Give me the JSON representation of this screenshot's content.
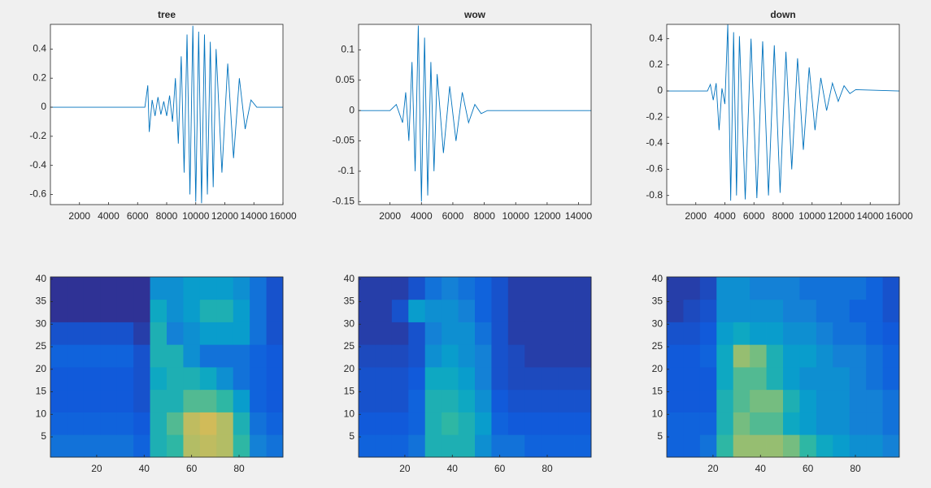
{
  "chart_data": [
    {
      "type": "line",
      "title": "tree",
      "color": "#0072bd",
      "x": [
        0,
        6500,
        6700,
        6800,
        7000,
        7200,
        7400,
        7600,
        7800,
        8000,
        8200,
        8400,
        8600,
        8800,
        9000,
        9200,
        9400,
        9600,
        9800,
        10000,
        10200,
        10400,
        10600,
        10800,
        11000,
        11200,
        11400,
        11800,
        12200,
        12600,
        13000,
        13400,
        13800,
        14200,
        16000
      ],
      "values": [
        0,
        0,
        0.15,
        -0.17,
        0.05,
        -0.06,
        0.07,
        -0.05,
        0.04,
        -0.06,
        0.08,
        -0.1,
        0.2,
        -0.25,
        0.35,
        -0.45,
        0.5,
        -0.6,
        0.56,
        -0.65,
        0.52,
        -0.66,
        0.5,
        -0.6,
        0.45,
        -0.55,
        0.4,
        -0.45,
        0.3,
        -0.35,
        0.2,
        -0.15,
        0.05,
        0,
        0
      ],
      "xlim": [
        0,
        16000
      ],
      "xticks": [
        2000,
        4000,
        6000,
        8000,
        10000,
        12000,
        14000,
        16000
      ],
      "ylim": [
        -0.67,
        0.57
      ],
      "yticks": [
        -0.6,
        -0.4,
        -0.2,
        0,
        0.2,
        0.4
      ]
    },
    {
      "type": "line",
      "title": "wow",
      "color": "#0072bd",
      "x": [
        0,
        2000,
        2400,
        2800,
        3000,
        3200,
        3400,
        3600,
        3800,
        4000,
        4200,
        4400,
        4600,
        4800,
        5000,
        5400,
        5800,
        6200,
        6600,
        7000,
        7400,
        7800,
        8200,
        14800
      ],
      "values": [
        0,
        0,
        0.01,
        -0.02,
        0.03,
        -0.05,
        0.08,
        -0.1,
        0.14,
        -0.15,
        0.12,
        -0.14,
        0.08,
        -0.1,
        0.06,
        -0.07,
        0.04,
        -0.05,
        0.03,
        -0.02,
        0.01,
        -0.005,
        0,
        0
      ],
      "xlim": [
        0,
        14800
      ],
      "xticks": [
        2000,
        4000,
        6000,
        8000,
        10000,
        12000,
        14000
      ],
      "ylim": [
        -0.155,
        0.142
      ],
      "yticks": [
        -0.15,
        -0.1,
        -0.05,
        0,
        0.05,
        0.1
      ]
    },
    {
      "type": "line",
      "title": "down",
      "color": "#0072bd",
      "x": [
        0,
        2800,
        3000,
        3200,
        3400,
        3600,
        3800,
        4000,
        4200,
        4400,
        4600,
        4800,
        5000,
        5400,
        5800,
        6200,
        6600,
        7000,
        7400,
        7800,
        8200,
        8600,
        9000,
        9400,
        9800,
        10200,
        10600,
        11000,
        11400,
        11800,
        12200,
        12600,
        13000,
        16000
      ],
      "values": [
        0,
        0,
        0.05,
        -0.07,
        0.06,
        -0.3,
        0.02,
        -0.1,
        0.51,
        -0.84,
        0.45,
        -0.8,
        0.42,
        -0.83,
        0.4,
        -0.82,
        0.38,
        -0.8,
        0.35,
        -0.78,
        0.3,
        -0.6,
        0.25,
        -0.45,
        0.18,
        -0.3,
        0.1,
        -0.15,
        0.06,
        -0.08,
        0.04,
        -0.02,
        0.01,
        0
      ],
      "xlim": [
        0,
        16000
      ],
      "xticks": [
        2000,
        4000,
        6000,
        8000,
        10000,
        12000,
        14000,
        16000
      ],
      "ylim": [
        -0.87,
        0.51
      ],
      "yticks": [
        -0.8,
        -0.6,
        -0.4,
        -0.2,
        0,
        0.2,
        0.4
      ]
    },
    {
      "type": "heatmap",
      "xbins": [
        0.5,
        7.5,
        14.5,
        21.5,
        28.5,
        35.5,
        42.5,
        49.5,
        56.5,
        63.5,
        70.5,
        77.5,
        84.5,
        91.5,
        98.5
      ],
      "ybins": [
        0.5,
        5.5,
        10.5,
        15.5,
        20.5,
        25.5,
        30.5,
        35.5,
        40.5
      ],
      "z": [
        [
          0.2,
          0.2,
          0.2,
          0.2,
          0.2,
          0.15,
          0.45,
          0.5,
          0.7,
          0.72,
          0.7,
          0.5,
          0.25,
          0.2
        ],
        [
          0.15,
          0.15,
          0.15,
          0.15,
          0.15,
          0.12,
          0.45,
          0.55,
          0.72,
          0.75,
          0.7,
          0.45,
          0.2,
          0.15
        ],
        [
          0.12,
          0.12,
          0.12,
          0.12,
          0.12,
          0.1,
          0.45,
          0.45,
          0.55,
          0.55,
          0.5,
          0.35,
          0.15,
          0.12
        ],
        [
          0.12,
          0.12,
          0.12,
          0.12,
          0.12,
          0.1,
          0.4,
          0.45,
          0.45,
          0.4,
          0.3,
          0.2,
          0.15,
          0.12
        ],
        [
          0.15,
          0.15,
          0.15,
          0.15,
          0.15,
          0.1,
          0.45,
          0.45,
          0.3,
          0.2,
          0.2,
          0.2,
          0.15,
          0.12
        ],
        [
          0.1,
          0.1,
          0.1,
          0.1,
          0.1,
          0.05,
          0.45,
          0.25,
          0.3,
          0.35,
          0.35,
          0.35,
          0.2,
          0.1
        ],
        [
          0.02,
          0.02,
          0.02,
          0.02,
          0.02,
          0.02,
          0.4,
          0.3,
          0.35,
          0.45,
          0.45,
          0.35,
          0.2,
          0.1
        ],
        [
          0.02,
          0.02,
          0.02,
          0.02,
          0.02,
          0.02,
          0.3,
          0.3,
          0.35,
          0.35,
          0.35,
          0.3,
          0.2,
          0.1
        ]
      ],
      "clim": [
        0,
        1
      ],
      "colormap": [
        "#352a87",
        "#0f5cdd",
        "#1481d6",
        "#06a4ca",
        "#2eb7a4",
        "#87bf77",
        "#d1bb59",
        "#fec832",
        "#f9fb0e"
      ],
      "xlim": [
        0.5,
        98.5
      ],
      "xticks": [
        20,
        40,
        60,
        80
      ],
      "ylim": [
        0.5,
        40.5
      ],
      "yticks": [
        5,
        10,
        15,
        20,
        25,
        30,
        35,
        40
      ]
    },
    {
      "type": "heatmap",
      "xbins": [
        0.5,
        7.5,
        14.5,
        21.5,
        28.5,
        35.5,
        42.5,
        49.5,
        56.5,
        63.5,
        70.5,
        77.5,
        84.5,
        91.5,
        98.5
      ],
      "ybins": [
        0.5,
        5.5,
        10.5,
        15.5,
        20.5,
        25.5,
        30.5,
        35.5,
        40.5
      ],
      "z": [
        [
          0.15,
          0.15,
          0.15,
          0.2,
          0.45,
          0.45,
          0.45,
          0.3,
          0.2,
          0.2,
          0.15,
          0.15,
          0.15,
          0.15
        ],
        [
          0.12,
          0.12,
          0.12,
          0.15,
          0.45,
          0.5,
          0.45,
          0.35,
          0.15,
          0.12,
          0.12,
          0.12,
          0.12,
          0.12
        ],
        [
          0.1,
          0.1,
          0.1,
          0.15,
          0.45,
          0.45,
          0.4,
          0.3,
          0.12,
          0.1,
          0.1,
          0.1,
          0.1,
          0.1
        ],
        [
          0.1,
          0.1,
          0.1,
          0.12,
          0.4,
          0.4,
          0.35,
          0.25,
          0.1,
          0.08,
          0.08,
          0.08,
          0.08,
          0.08
        ],
        [
          0.08,
          0.08,
          0.08,
          0.1,
          0.3,
          0.35,
          0.3,
          0.25,
          0.1,
          0.08,
          0.05,
          0.05,
          0.05,
          0.05
        ],
        [
          0.05,
          0.05,
          0.05,
          0.1,
          0.25,
          0.3,
          0.3,
          0.2,
          0.1,
          0.05,
          0.05,
          0.05,
          0.05,
          0.05
        ],
        [
          0.05,
          0.05,
          0.1,
          0.35,
          0.3,
          0.3,
          0.25,
          0.15,
          0.1,
          0.05,
          0.05,
          0.05,
          0.05,
          0.05
        ],
        [
          0.05,
          0.05,
          0.05,
          0.1,
          0.2,
          0.25,
          0.2,
          0.15,
          0.1,
          0.05,
          0.05,
          0.05,
          0.05,
          0.05
        ]
      ],
      "clim": [
        0,
        1
      ],
      "colormap": [
        "#352a87",
        "#0f5cdd",
        "#1481d6",
        "#06a4ca",
        "#2eb7a4",
        "#87bf77",
        "#d1bb59",
        "#fec832",
        "#f9fb0e"
      ],
      "xlim": [
        0.5,
        98.5
      ],
      "xticks": [
        20,
        40,
        60,
        80
      ],
      "ylim": [
        0.5,
        40.5
      ],
      "yticks": [
        5,
        10,
        15,
        20,
        25,
        30,
        35,
        40
      ]
    },
    {
      "type": "heatmap",
      "xbins": [
        0.5,
        7.5,
        14.5,
        21.5,
        28.5,
        35.5,
        42.5,
        49.5,
        56.5,
        63.5,
        70.5,
        77.5,
        84.5,
        91.5,
        98.5
      ],
      "ybins": [
        0.5,
        5.5,
        10.5,
        15.5,
        20.5,
        25.5,
        30.5,
        35.5,
        40.5
      ],
      "z": [
        [
          0.15,
          0.15,
          0.2,
          0.5,
          0.65,
          0.65,
          0.65,
          0.6,
          0.5,
          0.4,
          0.35,
          0.3,
          0.3,
          0.25
        ],
        [
          0.15,
          0.15,
          0.15,
          0.45,
          0.6,
          0.55,
          0.55,
          0.4,
          0.35,
          0.3,
          0.3,
          0.25,
          0.25,
          0.2
        ],
        [
          0.12,
          0.12,
          0.12,
          0.45,
          0.55,
          0.6,
          0.6,
          0.45,
          0.35,
          0.3,
          0.3,
          0.25,
          0.25,
          0.2
        ],
        [
          0.12,
          0.12,
          0.12,
          0.4,
          0.55,
          0.55,
          0.45,
          0.35,
          0.3,
          0.3,
          0.3,
          0.25,
          0.2,
          0.15
        ],
        [
          0.12,
          0.12,
          0.15,
          0.4,
          0.65,
          0.6,
          0.45,
          0.35,
          0.35,
          0.3,
          0.25,
          0.25,
          0.2,
          0.15
        ],
        [
          0.1,
          0.1,
          0.12,
          0.35,
          0.4,
          0.35,
          0.35,
          0.3,
          0.3,
          0.25,
          0.2,
          0.2,
          0.15,
          0.12
        ],
        [
          0.05,
          0.08,
          0.1,
          0.3,
          0.3,
          0.3,
          0.3,
          0.25,
          0.25,
          0.2,
          0.2,
          0.15,
          0.15,
          0.1
        ],
        [
          0.05,
          0.05,
          0.08,
          0.3,
          0.3,
          0.25,
          0.25,
          0.25,
          0.2,
          0.2,
          0.2,
          0.2,
          0.15,
          0.1
        ]
      ],
      "clim": [
        0,
        1
      ],
      "colormap": [
        "#352a87",
        "#0f5cdd",
        "#1481d6",
        "#06a4ca",
        "#2eb7a4",
        "#87bf77",
        "#d1bb59",
        "#fec832",
        "#f9fb0e"
      ],
      "xlim": [
        0.5,
        98.5
      ],
      "xticks": [
        20,
        40,
        60,
        80
      ],
      "ylim": [
        0.5,
        40.5
      ],
      "yticks": [
        5,
        10,
        15,
        20,
        25,
        30,
        35,
        40
      ]
    }
  ]
}
